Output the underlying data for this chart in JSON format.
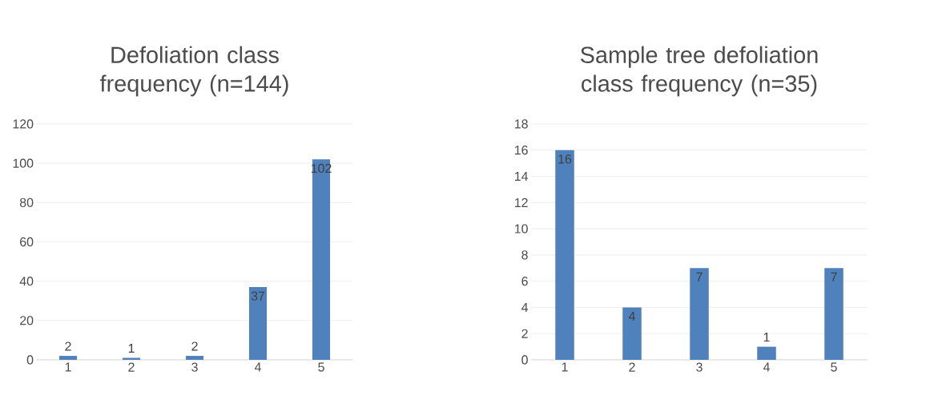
{
  "chart_data": [
    {
      "type": "bar",
      "title": "Defoliation class frequency (n=144)",
      "categories": [
        "1",
        "2",
        "3",
        "4",
        "5"
      ],
      "values": [
        2,
        1,
        2,
        37,
        102
      ],
      "color": "#4f81bd",
      "ylim": [
        0,
        120
      ],
      "yticks": [
        0,
        20,
        40,
        60,
        80,
        100,
        120
      ],
      "grid": "y",
      "data_labels": true
    },
    {
      "type": "bar",
      "title": "Sample tree defoliation class frequency (n=35)",
      "categories": [
        "1",
        "2",
        "3",
        "4",
        "5"
      ],
      "values": [
        16,
        4,
        7,
        1,
        7
      ],
      "color": "#4f81bd",
      "ylim": [
        0,
        18
      ],
      "yticks": [
        0,
        2,
        4,
        6,
        8,
        10,
        12,
        14,
        16,
        18
      ],
      "grid": "y",
      "data_labels": true
    }
  ]
}
